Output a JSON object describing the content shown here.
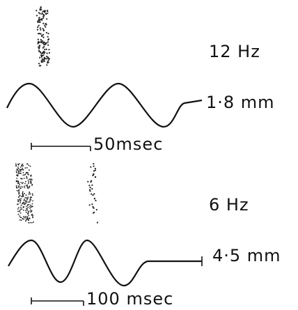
{
  "panels": [
    {
      "frequency": "12 Hz",
      "amplitude": "1·8 mm",
      "scale": "50msec"
    },
    {
      "frequency": "6 Hz",
      "amplitude": "4·5 mm",
      "scale": "100 msec"
    }
  ]
}
